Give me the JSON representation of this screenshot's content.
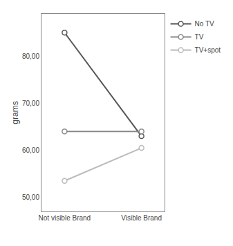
{
  "chart_data": {
    "type": "line",
    "categories": [
      "Not visible Brand",
      "Visible Brand"
    ],
    "series": [
      {
        "name": "No TV",
        "color": "#555555",
        "values": [
          85.0,
          63.0
        ]
      },
      {
        "name": "TV",
        "color": "#888888",
        "values": [
          64.0,
          64.0
        ]
      },
      {
        "name": "TV+spot",
        "color": "#bbbbbb",
        "values": [
          53.5,
          60.5
        ]
      }
    ],
    "ylabel": "grams",
    "ylim": [
      47,
      89
    ],
    "yticks": [
      {
        "value": 50.0,
        "label": "50,00"
      },
      {
        "value": 60.0,
        "label": "60,00"
      },
      {
        "value": 70.0,
        "label": "70,00"
      },
      {
        "value": 80.0,
        "label": "80,00"
      }
    ],
    "grid": false,
    "legend": "right",
    "marker": "circle",
    "line_style": "solid"
  }
}
